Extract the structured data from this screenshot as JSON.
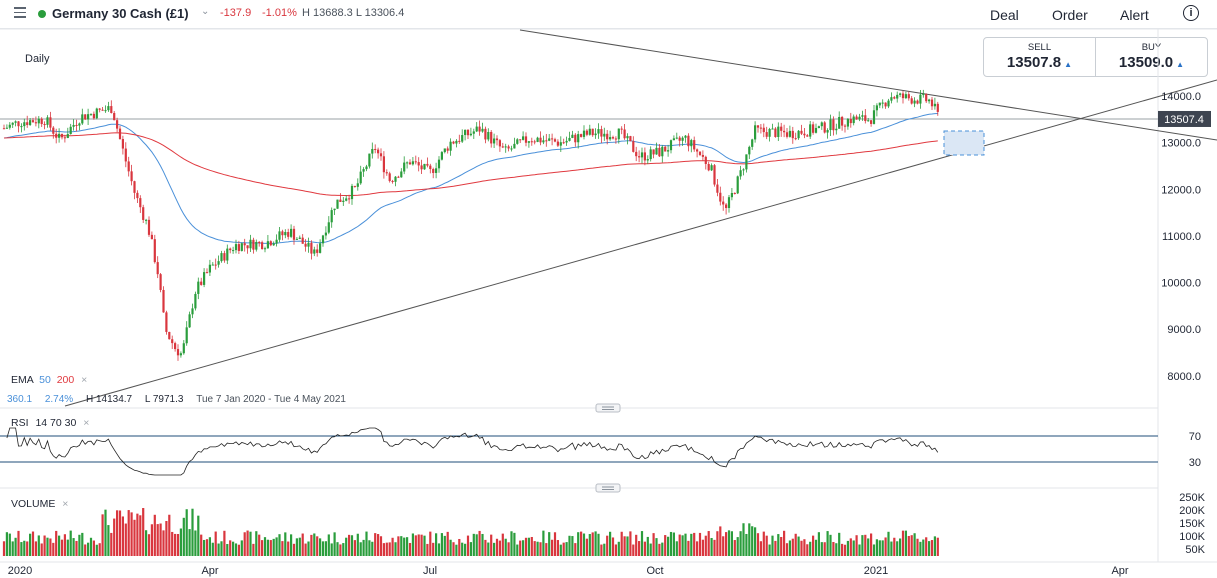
{
  "header": {
    "instrument": "Germany 30 Cash (£1)",
    "change": "-137.9",
    "change_pct": "-1.01%",
    "high_low": "H 13688.3 L 13306.4",
    "nav": [
      "Deal",
      "Order",
      "Alert"
    ],
    "info_icon": "info-icon"
  },
  "chart": {
    "timeframe": "Daily",
    "sell_label": "SELL",
    "sell_value": "13507.8",
    "buy_label": "BUY",
    "buy_value": "13509.0",
    "last_price_tag": "13507.4",
    "price_ticks": [
      "14000.0",
      "13000.0",
      "12000.0",
      "11000.0",
      "10000.0",
      "9000.0",
      "8000.0"
    ],
    "ema": {
      "label": "EMA",
      "p1": "50",
      "p2": "200",
      "info_1": "360.1",
      "info_2": "2.74%",
      "high": "H 14134.7",
      "low": "L 7971.3",
      "range": "Tue 7 Jan 2020 - Tue 4 May 2021"
    },
    "rsi": {
      "label": "RSI",
      "params": "14 70 30",
      "upper": "70",
      "lower": "30"
    },
    "volume": {
      "label": "VOLUME",
      "ticks": [
        "250K",
        "200K",
        "150K",
        "100K",
        "50K"
      ]
    },
    "x_ticks": [
      "2020",
      "Apr",
      "Jul",
      "Oct",
      "2021",
      "Apr"
    ],
    "colors": {
      "up": "#2a9d3c",
      "down": "#d9363e",
      "ema50": "#4a90d9",
      "ema200": "#e0393f",
      "trend": "#555555",
      "rsi": "#222222"
    }
  },
  "chart_data": {
    "type": "candlestick",
    "title": "Germany 30 Cash (£1)",
    "timeframe": "Daily",
    "x_range": [
      "2020-01",
      "2021-04"
    ],
    "y_range": [
      7800,
      14300
    ],
    "approx_closes": [
      {
        "date": "2020-01",
        "close": 13400
      },
      {
        "date": "2020-02",
        "close": 13700
      },
      {
        "date": "2020-03",
        "close": 8500
      },
      {
        "date": "2020-04",
        "close": 10700
      },
      {
        "date": "2020-05",
        "close": 11600
      },
      {
        "date": "2020-06",
        "close": 12300
      },
      {
        "date": "2020-07",
        "close": 12800
      },
      {
        "date": "2020-08",
        "close": 12900
      },
      {
        "date": "2020-09",
        "close": 12800
      },
      {
        "date": "2020-10",
        "close": 11600
      },
      {
        "date": "2020-11",
        "close": 13300
      },
      {
        "date": "2020-12",
        "close": 13700
      },
      {
        "date": "2021-01",
        "close": 13500
      }
    ]
  }
}
